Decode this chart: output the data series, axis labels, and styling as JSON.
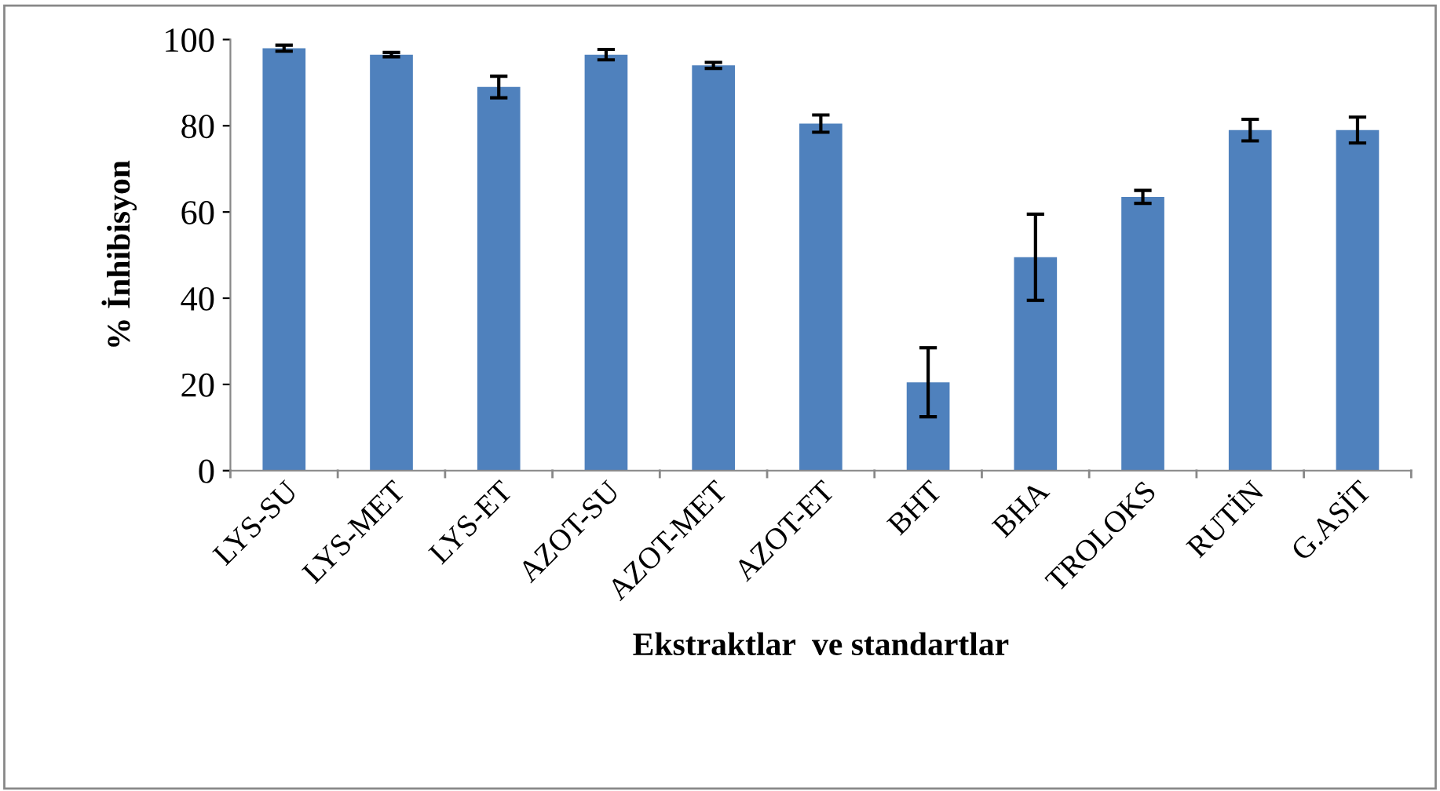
{
  "chart_data": {
    "type": "bar",
    "xlabel": "Ekstraktlar  ve standartlar",
    "ylabel": "% İnhibisyon",
    "categories": [
      "LYS-SU",
      "LYS-MET",
      "LYS-ET",
      "AZOT-SU",
      "AZOT-MET",
      "AZOT-ET",
      "BHT",
      "BHA",
      "TROLOKS",
      "RUTİN",
      "G.ASİT"
    ],
    "values": [
      98,
      96.5,
      89,
      96.5,
      94,
      80.5,
      20.5,
      49.5,
      63.5,
      79,
      79
    ],
    "errors": [
      0.7,
      0.5,
      2.5,
      1.2,
      0.7,
      2,
      8,
      10,
      1.5,
      2.5,
      3
    ],
    "color": "#4f81bd",
    "ylim": [
      0,
      100
    ],
    "yticks": [
      0,
      20,
      40,
      60,
      80,
      100
    ],
    "grid": false
  }
}
